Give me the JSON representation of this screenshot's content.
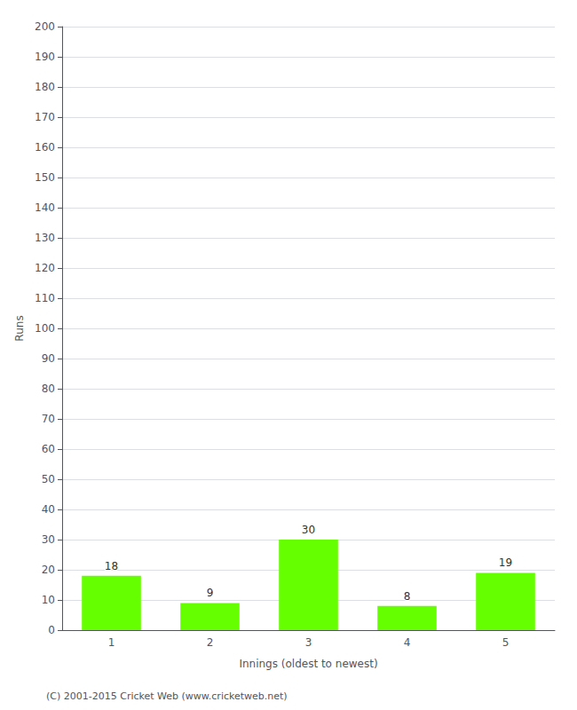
{
  "chart_data": {
    "type": "bar",
    "xlabel": "Innings (oldest to newest)",
    "ylabel": "Runs",
    "categories": [
      "1",
      "2",
      "3",
      "4",
      "5"
    ],
    "values": [
      18,
      9,
      30,
      8,
      19
    ],
    "color": "#66ff00",
    "data_labels": true,
    "ylim": [
      0,
      200
    ],
    "yticks": [
      0,
      10,
      20,
      30,
      40,
      50,
      60,
      70,
      80,
      90,
      100,
      110,
      120,
      130,
      140,
      150,
      160,
      170,
      180,
      190,
      200
    ],
    "grid": true,
    "footer": "(C) 2001-2015 Cricket Web (www.cricketweb.net)"
  }
}
